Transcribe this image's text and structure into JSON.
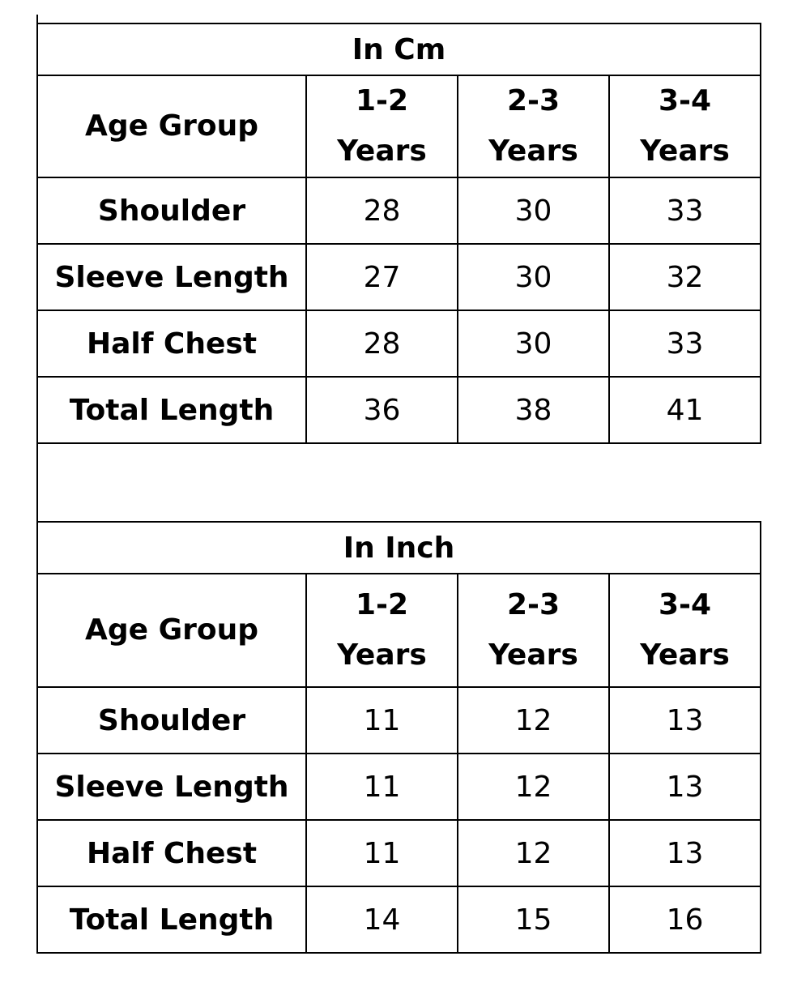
{
  "tables": [
    {
      "unit": "In Cm",
      "corner_label": "Age Group",
      "columns": [
        {
          "top": "1-2",
          "bottom": "Years"
        },
        {
          "top": "2-3",
          "bottom": "Years"
        },
        {
          "top": "3-4",
          "bottom": "Years"
        }
      ],
      "rows": [
        {
          "label": "Shoulder",
          "values": [
            "28",
            "30",
            "33"
          ]
        },
        {
          "label": "Sleeve Length",
          "values": [
            "27",
            "30",
            "32"
          ]
        },
        {
          "label": "Half Chest",
          "values": [
            "28",
            "30",
            "33"
          ]
        },
        {
          "label": "Total Length",
          "values": [
            "36",
            "38",
            "41"
          ]
        }
      ]
    },
    {
      "unit": "In Inch",
      "corner_label": "Age Group",
      "columns": [
        {
          "top": "1-2",
          "bottom": "Years"
        },
        {
          "top": "2-3",
          "bottom": "Years"
        },
        {
          "top": "3-4",
          "bottom": "Years"
        }
      ],
      "rows": [
        {
          "label": "Shoulder",
          "values": [
            "11",
            "12",
            "13"
          ]
        },
        {
          "label": "Sleeve Length",
          "values": [
            "11",
            "12",
            "13"
          ]
        },
        {
          "label": "Half Chest",
          "values": [
            "11",
            "12",
            "13"
          ]
        },
        {
          "label": "Total Length",
          "values": [
            "14",
            "15",
            "16"
          ]
        }
      ]
    }
  ]
}
